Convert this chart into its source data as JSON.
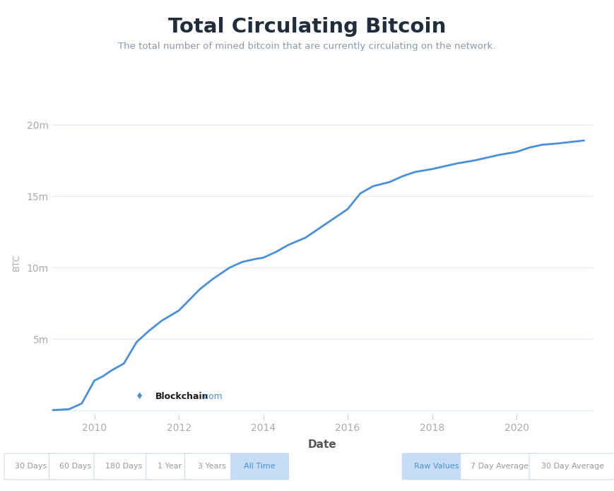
{
  "title": "Total Circulating Bitcoin",
  "subtitle": "The total number of mined bitcoin that are currently circulating on the network.",
  "xlabel": "Date",
  "ylabel": "BTC",
  "title_color": "#1f2d3d",
  "subtitle_color": "#8899aa",
  "line_color": "#4a90d9",
  "background_color": "#ffffff",
  "grid_color": "#e0e8f0",
  "yticks": [
    0,
    5000000,
    10000000,
    15000000,
    20000000
  ],
  "ytick_labels": [
    "",
    "5m",
    "10m",
    "15m",
    "20m"
  ],
  "xlim_start": 2009.0,
  "xlim_end": 2021.8,
  "ylim_bottom": -300000,
  "ylim_top": 21000000,
  "x_years": [
    2009.0,
    2009.4,
    2009.7,
    2010.0,
    2010.2,
    2010.4,
    2010.7,
    2011.0,
    2011.3,
    2011.6,
    2012.0,
    2012.3,
    2012.5,
    2012.8,
    2013.0,
    2013.2,
    2013.5,
    2013.8,
    2014.0,
    2014.3,
    2014.6,
    2015.0,
    2015.3,
    2015.6,
    2016.0,
    2016.3,
    2016.6,
    2017.0,
    2017.3,
    2017.6,
    2018.0,
    2018.3,
    2018.6,
    2019.0,
    2019.3,
    2019.6,
    2020.0,
    2020.3,
    2020.6,
    2021.0,
    2021.3,
    2021.6
  ],
  "y_values": [
    30000,
    100000,
    500000,
    2100000,
    2400000,
    2800000,
    3300000,
    4800000,
    5600000,
    6300000,
    7000000,
    7900000,
    8500000,
    9200000,
    9600000,
    10000000,
    10400000,
    10600000,
    10700000,
    11100000,
    11600000,
    12100000,
    12700000,
    13300000,
    14100000,
    15200000,
    15700000,
    16000000,
    16400000,
    16700000,
    16900000,
    17100000,
    17300000,
    17500000,
    17700000,
    17900000,
    18100000,
    18400000,
    18600000,
    18700000,
    18800000,
    18900000
  ],
  "xtick_years": [
    2010,
    2012,
    2014,
    2016,
    2018,
    2020
  ],
  "bottom_buttons_left": [
    "30 Days",
    "60 Days",
    "180 Days",
    "1 Year",
    "3 Years",
    "All Time"
  ],
  "bottom_buttons_right": [
    "Raw Values",
    "7 Day Average",
    "30 Day Average"
  ],
  "active_left": "All Time",
  "active_right": "Raw Values",
  "button_bg_active": "#c5ddf5",
  "button_bg_inactive": "#ffffff",
  "button_border_color": "#c8d8ea",
  "button_text_active": "#4a90d9",
  "button_text_inactive": "#999999",
  "blockchain_logo_color": "#4a90d9",
  "blockchain_bold_color": "#1a1a1a",
  "blockchain_light_color": "#4a90d9"
}
